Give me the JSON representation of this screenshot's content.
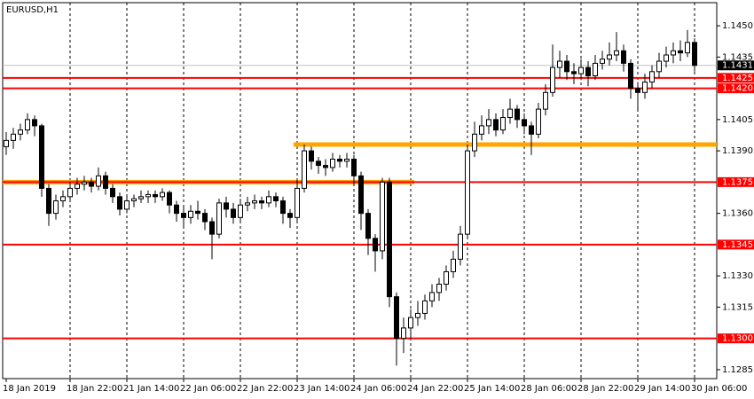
{
  "chart_data": {
    "type": "candlestick",
    "title": "EURUSD,H1",
    "categories": [
      "18 Jan 2019",
      null,
      null,
      null,
      null,
      null,
      null,
      null,
      null,
      "18 Jan 22:00",
      null,
      null,
      null,
      null,
      null,
      null,
      null,
      "21 Jan 14:00",
      null,
      null,
      null,
      null,
      null,
      null,
      null,
      "22 Jan 06:00",
      null,
      null,
      null,
      null,
      null,
      null,
      null,
      "22 Jan 22:00",
      null,
      null,
      null,
      null,
      null,
      null,
      null,
      "23 Jan 14:00",
      null,
      null,
      null,
      null,
      null,
      null,
      null,
      "24 Jan 06:00",
      null,
      null,
      null,
      null,
      null,
      null,
      null,
      "24 Jan 22:00",
      null,
      null,
      null,
      null,
      null,
      null,
      null,
      "25 Jan 14:00",
      null,
      null,
      null,
      null,
      null,
      null,
      null,
      "28 Jan 06:00",
      null,
      null,
      null,
      null,
      null,
      null,
      null,
      "28 Jan 22:00",
      null,
      null,
      null,
      null,
      null,
      null,
      null,
      "29 Jan 14:00",
      null,
      null,
      null,
      null,
      null,
      null,
      null,
      "30 Jan 06:00"
    ],
    "open": [
      1.1392,
      1.1395,
      1.1398,
      1.14,
      1.1405,
      1.1402,
      1.1372,
      1.136,
      1.1366,
      1.1368,
      1.1372,
      1.1374,
      1.1375,
      1.1373,
      1.1378,
      1.1372,
      1.1368,
      1.1362,
      1.1366,
      1.1367,
      1.1368,
      1.1369,
      1.1368,
      1.137,
      1.1364,
      1.136,
      1.1358,
      1.1361,
      1.136,
      1.1356,
      1.135,
      1.1365,
      1.1362,
      1.1358,
      1.1364,
      1.1365,
      1.1366,
      1.1365,
      1.1368,
      1.1366,
      1.136,
      1.1358,
      1.1372,
      1.139,
      1.1385,
      1.1383,
      1.1382,
      1.1386,
      1.1385,
      1.1386,
      1.1378,
      1.136,
      1.1348,
      1.1342,
      1.1375,
      1.132,
      1.13,
      1.1305,
      1.131,
      1.1312,
      1.1318,
      1.1322,
      1.1326,
      1.1332,
      1.1338,
      1.135,
      1.139,
      1.1398,
      1.1402,
      1.1405,
      1.14,
      1.1406,
      1.141,
      1.1405,
      1.1402,
      1.1398,
      1.141,
      1.1418,
      1.143,
      1.1433,
      1.1428,
      1.1427,
      1.143,
      1.1426,
      1.1432,
      1.1434,
      1.1436,
      1.1438,
      1.1432,
      1.142,
      1.1418,
      1.1423,
      1.1428,
      1.1433,
      1.1436,
      1.1438,
      1.1437,
      1.1442
    ],
    "high": [
      1.1399,
      1.1401,
      1.1403,
      1.1408,
      1.1407,
      1.1403,
      1.1374,
      1.1369,
      1.1371,
      1.1375,
      1.1377,
      1.1378,
      1.1377,
      1.1382,
      1.138,
      1.1374,
      1.137,
      1.1368,
      1.1369,
      1.1371,
      1.1371,
      1.1371,
      1.1372,
      1.1371,
      1.1366,
      1.1363,
      1.1364,
      1.1366,
      1.1362,
      1.1358,
      1.1367,
      1.1368,
      1.1365,
      1.1367,
      1.1368,
      1.1369,
      1.1368,
      1.1371,
      1.137,
      1.1368,
      1.1362,
      1.1376,
      1.1393,
      1.1392,
      1.1387,
      1.1386,
      1.1389,
      1.1388,
      1.1389,
      1.1388,
      1.138,
      1.1362,
      1.135,
      1.1377,
      1.1377,
      1.1322,
      1.131,
      1.1314,
      1.1318,
      1.1321,
      1.1326,
      1.1329,
      1.1335,
      1.1342,
      1.1354,
      1.1393,
      1.1404,
      1.1407,
      1.141,
      1.1408,
      1.141,
      1.1415,
      1.1412,
      1.1408,
      1.1404,
      1.1413,
      1.1422,
      1.1441,
      1.1438,
      1.1436,
      1.1432,
      1.1434,
      1.1433,
      1.1436,
      1.1438,
      1.1442,
      1.1447,
      1.1441,
      1.1434,
      1.1423,
      1.1427,
      1.1431,
      1.1437,
      1.144,
      1.1442,
      1.1443,
      1.1448,
      1.1444
    ],
    "low": [
      1.1388,
      1.1391,
      1.1395,
      1.1398,
      1.1397,
      1.1368,
      1.1354,
      1.1357,
      1.1363,
      1.1366,
      1.1369,
      1.1371,
      1.137,
      1.1371,
      1.1369,
      1.1365,
      1.1359,
      1.136,
      1.1363,
      1.1365,
      1.1365,
      1.1365,
      1.1366,
      1.136,
      1.1356,
      1.1353,
      1.1355,
      1.1357,
      1.1352,
      1.1338,
      1.1348,
      1.1358,
      1.1355,
      1.1356,
      1.1361,
      1.1362,
      1.1362,
      1.1363,
      1.1363,
      1.1355,
      1.1353,
      1.1356,
      1.137,
      1.1381,
      1.1379,
      1.1378,
      1.138,
      1.1382,
      1.1382,
      1.1374,
      1.1352,
      1.134,
      1.1332,
      1.1338,
      1.1315,
      1.1287,
      1.1293,
      1.13,
      1.1306,
      1.1309,
      1.1315,
      1.1318,
      1.1323,
      1.1329,
      1.1335,
      1.1348,
      1.1387,
      1.1395,
      1.1398,
      1.1397,
      1.1398,
      1.1403,
      1.1401,
      1.1398,
      1.1388,
      1.1396,
      1.1407,
      1.1416,
      1.1425,
      1.1424,
      1.1422,
      1.1424,
      1.1421,
      1.1424,
      1.1429,
      1.1431,
      1.1433,
      1.1428,
      1.1415,
      1.141,
      1.1415,
      1.142,
      1.1425,
      1.143,
      1.1432,
      1.1433,
      1.1435,
      1.1428
    ],
    "close": [
      1.1395,
      1.1398,
      1.14,
      1.1405,
      1.1402,
      1.1372,
      1.136,
      1.1366,
      1.1368,
      1.1372,
      1.1374,
      1.1375,
      1.1373,
      1.1378,
      1.1372,
      1.1368,
      1.1362,
      1.1366,
      1.1367,
      1.1368,
      1.1369,
      1.1368,
      1.137,
      1.1364,
      1.136,
      1.1358,
      1.1361,
      1.136,
      1.1356,
      1.135,
      1.1365,
      1.1362,
      1.1358,
      1.1364,
      1.1365,
      1.1366,
      1.1365,
      1.1368,
      1.1366,
      1.136,
      1.1358,
      1.1372,
      1.139,
      1.1385,
      1.1383,
      1.1382,
      1.1386,
      1.1385,
      1.1386,
      1.1378,
      1.136,
      1.1348,
      1.1342,
      1.1375,
      1.132,
      1.13,
      1.1305,
      1.131,
      1.1312,
      1.1318,
      1.1322,
      1.1326,
      1.1332,
      1.1338,
      1.135,
      1.139,
      1.1398,
      1.1402,
      1.1405,
      1.14,
      1.1406,
      1.141,
      1.1405,
      1.1402,
      1.1398,
      1.141,
      1.1418,
      1.143,
      1.1433,
      1.1428,
      1.1427,
      1.143,
      1.1426,
      1.1432,
      1.1434,
      1.1436,
      1.1438,
      1.1432,
      1.142,
      1.1418,
      1.1423,
      1.1428,
      1.1433,
      1.1436,
      1.1438,
      1.1437,
      1.1442,
      1.1431
    ],
    "ylim": [
      1.12807,
      1.14611
    ],
    "yticks": [
      {
        "value": 1.145,
        "label": "1.1450"
      },
      {
        "value": 1.1435,
        "label": "1.1435"
      },
      {
        "value": 1.1405,
        "label": "1.1405"
      },
      {
        "value": 1.139,
        "label": "1.1390"
      },
      {
        "value": 1.136,
        "label": "1.1360"
      },
      {
        "value": 1.133,
        "label": "1.1330"
      },
      {
        "value": 1.1315,
        "label": "1.1315"
      },
      {
        "value": 1.1285,
        "label": "1.1285"
      }
    ],
    "grid": true,
    "up_color": "#ffffff",
    "down_color": "#000000",
    "zones": [
      {
        "value": 1.1375,
        "x": [
          0,
          58
        ],
        "ray": false,
        "color": "#ffa500"
      },
      {
        "value": 1.1393,
        "x": [
          41,
          97
        ],
        "ray": true,
        "color": "#ffa500"
      }
    ],
    "levels": [
      {
        "value": 1.1425,
        "label": "1.1425"
      },
      {
        "value": 1.142,
        "label": "1.1420"
      },
      {
        "value": 1.1375,
        "label": "1.1375"
      },
      {
        "value": 1.1345,
        "label": "1.1345"
      },
      {
        "value": 1.13,
        "label": "1.1300"
      }
    ],
    "level_color": "#ff0000",
    "last": {
      "value": 1.1431,
      "label": "1.1431"
    }
  }
}
